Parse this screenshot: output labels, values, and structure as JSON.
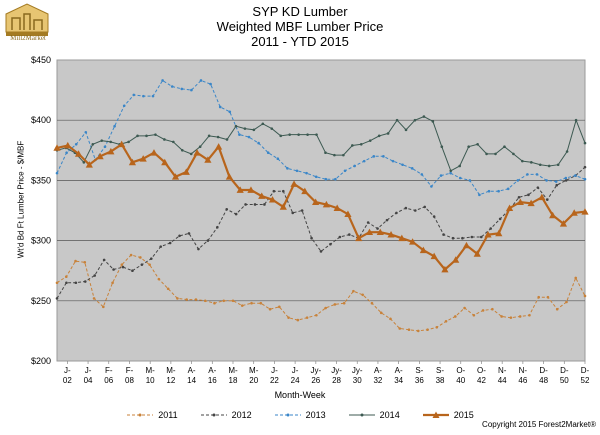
{
  "logo": {
    "brand": "Mill2Market"
  },
  "title": {
    "line1": "SYP KD Lumber",
    "line2": "Weighted MBF Lumber Price",
    "line3": "2011 - YTD 2015"
  },
  "copyright": "Copyright 2015 Forest2Market®",
  "chart_data": {
    "type": "line",
    "xlabel": "Month-Week",
    "ylabel": "Wt'd Bd Ft Lumber Price - $/MBF",
    "ylim": [
      200,
      450
    ],
    "yticks": [
      200,
      250,
      300,
      350,
      400,
      450
    ],
    "ytick_labels": [
      "$200",
      "$250",
      "$300",
      "$350",
      "$400",
      "$450"
    ],
    "x_range": [
      1,
      52
    ],
    "xticks": [
      {
        "week": 2,
        "top": "J-",
        "bottom": "02"
      },
      {
        "week": 4,
        "top": "J-",
        "bottom": "04"
      },
      {
        "week": 6,
        "top": "F-",
        "bottom": "06"
      },
      {
        "week": 8,
        "top": "F-",
        "bottom": "08"
      },
      {
        "week": 10,
        "top": "M-",
        "bottom": "10"
      },
      {
        "week": 12,
        "top": "M-",
        "bottom": "12"
      },
      {
        "week": 14,
        "top": "A-",
        "bottom": "14"
      },
      {
        "week": 16,
        "top": "A-",
        "bottom": "16"
      },
      {
        "week": 18,
        "top": "M-",
        "bottom": "18"
      },
      {
        "week": 20,
        "top": "M-",
        "bottom": "20"
      },
      {
        "week": 22,
        "top": "J-",
        "bottom": "22"
      },
      {
        "week": 24,
        "top": "J-",
        "bottom": "24"
      },
      {
        "week": 26,
        "top": "Jy-",
        "bottom": "26"
      },
      {
        "week": 28,
        "top": "Jy-",
        "bottom": "28"
      },
      {
        "week": 30,
        "top": "Jy-",
        "bottom": "30"
      },
      {
        "week": 32,
        "top": "A-",
        "bottom": "32"
      },
      {
        "week": 34,
        "top": "A-",
        "bottom": "34"
      },
      {
        "week": 36,
        "top": "S-",
        "bottom": "36"
      },
      {
        "week": 38,
        "top": "S-",
        "bottom": "38"
      },
      {
        "week": 40,
        "top": "O-",
        "bottom": "40"
      },
      {
        "week": 42,
        "top": "O-",
        "bottom": "42"
      },
      {
        "week": 44,
        "top": "N-",
        "bottom": "44"
      },
      {
        "week": 46,
        "top": "N-",
        "bottom": "46"
      },
      {
        "week": 48,
        "top": "D-",
        "bottom": "48"
      },
      {
        "week": 50,
        "top": "D-",
        "bottom": "50"
      },
      {
        "week": 52,
        "top": "D-",
        "bottom": "52"
      }
    ],
    "series": [
      {
        "name": "2011",
        "color": "#c8823a",
        "dash": "3,2",
        "marker": "dot",
        "width": 1,
        "values": [
          265,
          270,
          283,
          282,
          252,
          245,
          265,
          280,
          288,
          286,
          280,
          268,
          260,
          252,
          251,
          251,
          250,
          248,
          250,
          250,
          246,
          248,
          248,
          243,
          245,
          236,
          234,
          236,
          238,
          244,
          247,
          248,
          258,
          255,
          248,
          240,
          235,
          227,
          226,
          225,
          226,
          228,
          233,
          237,
          244,
          238,
          242,
          243,
          237,
          236,
          237,
          238,
          253,
          253,
          243,
          249,
          269,
          254
        ]
      },
      {
        "name": "2012",
        "color": "#444444",
        "dash": "3,2",
        "marker": "dot",
        "width": 1,
        "values": [
          252,
          265,
          265,
          266,
          271,
          284,
          276,
          278,
          275,
          280,
          285,
          295,
          298,
          304,
          306,
          293,
          300,
          311,
          326,
          322,
          330,
          330,
          330,
          341,
          341,
          323,
          325,
          302,
          291,
          297,
          303,
          305,
          302,
          315,
          310,
          317,
          323,
          327,
          325,
          328,
          320,
          305,
          302,
          302,
          303,
          303,
          310,
          318,
          326,
          336,
          338,
          344,
          334,
          346,
          350,
          354,
          361
        ]
      },
      {
        "name": "2013",
        "color": "#3a86c8",
        "dash": "3,2",
        "marker": "dot",
        "width": 1,
        "values": [
          356,
          373,
          380,
          390,
          367,
          378,
          395,
          412,
          421,
          420,
          420,
          433,
          428,
          426,
          425,
          433,
          430,
          411,
          407,
          388,
          386,
          381,
          373,
          368,
          360,
          358,
          356,
          353,
          351,
          351,
          358,
          362,
          366,
          370,
          370,
          366,
          363,
          360,
          355,
          345,
          354,
          356,
          352,
          350,
          338,
          341,
          341,
          343,
          350,
          355,
          355,
          350,
          349,
          352,
          354,
          351
        ]
      },
      {
        "name": "2014",
        "color": "#3d5a52",
        "dash": "",
        "marker": "dot",
        "width": 1,
        "values": [
          375,
          377,
          373,
          365,
          380,
          383,
          382,
          380,
          382,
          387,
          387,
          388,
          384,
          382,
          375,
          372,
          378,
          387,
          386,
          384,
          395,
          393,
          392,
          397,
          393,
          387,
          388,
          388,
          388,
          388,
          373,
          371,
          371,
          379,
          380,
          383,
          387,
          389,
          400,
          392,
          400,
          403,
          399,
          378,
          358,
          362,
          378,
          380,
          372,
          372,
          378,
          372,
          366,
          365,
          363,
          362,
          363,
          374,
          400,
          381
        ]
      },
      {
        "name": "2015",
        "color": "#b8651c",
        "dash": "",
        "marker": "triangle",
        "width": 2.2,
        "values": [
          377,
          379,
          372,
          363,
          370,
          374,
          380,
          365,
          368,
          373,
          365,
          353,
          357,
          373,
          367,
          378,
          353,
          342,
          342,
          337,
          334,
          328,
          347,
          341,
          332,
          330,
          327,
          322,
          302,
          307,
          307,
          305,
          302,
          299,
          292,
          287,
          276,
          284,
          296,
          289,
          305,
          306,
          327,
          332,
          331,
          336,
          321,
          314,
          323,
          324
        ]
      }
    ]
  }
}
